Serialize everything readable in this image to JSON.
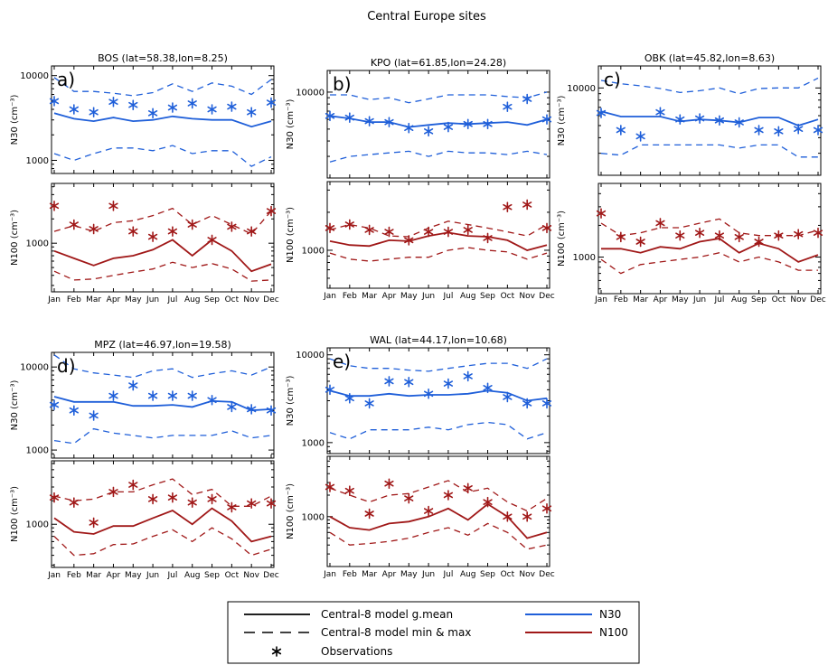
{
  "figure_title": "Central Europe sites",
  "months": [
    "Jan",
    "Feb",
    "Mar",
    "Apr",
    "May",
    "Jun",
    "Jul",
    "Aug",
    "Sep",
    "Oct",
    "Nov",
    "Dec"
  ],
  "colors": {
    "n30": "#1f5fd9",
    "n100": "#a01818",
    "axis": "#000000"
  },
  "legend": {
    "items": [
      {
        "symbol": "solid-line",
        "label": "Central-8 model g.mean"
      },
      {
        "symbol": "dashed-line",
        "label": "Central-8 model min & max"
      },
      {
        "symbol": "asterisk",
        "label": "Observations"
      },
      {
        "symbol": "blue-line",
        "label": "N30"
      },
      {
        "symbol": "red-line",
        "label": "N100"
      }
    ]
  },
  "chart_data": [
    {
      "type": "line",
      "panel_label": "a)",
      "title": "BOS (lat=58.38,lon=8.25)",
      "n30": {
        "ylabel": "N30 (cm⁻³)",
        "yscale": "log",
        "ylim": [
          700,
          13000
        ],
        "ticks": [
          {
            "v": 1000,
            "label": "1000"
          },
          {
            "v": 10000,
            "label": "10000"
          }
        ],
        "mean": [
          3600,
          3100,
          2900,
          3200,
          2900,
          3000,
          3300,
          3100,
          3000,
          3000,
          2500,
          2900
        ],
        "min": [
          1200,
          1000,
          1200,
          1400,
          1400,
          1300,
          1500,
          1200,
          1300,
          1300,
          850,
          1100
        ],
        "max": [
          9500,
          6500,
          6500,
          6200,
          5800,
          6300,
          8000,
          6500,
          8200,
          7500,
          6000,
          9000
        ],
        "obs": [
          5000,
          4000,
          3700,
          4900,
          4500,
          3600,
          4200,
          4700,
          4000,
          4300,
          3700,
          4800
        ]
      },
      "n100": {
        "ylabel": "N100 (cm⁻³)",
        "yscale": "log",
        "ylim": [
          250,
          5500
        ],
        "ticks": [
          {
            "v": 1000,
            "label": "1000"
          }
        ],
        "mean": [
          800,
          650,
          530,
          650,
          700,
          830,
          1100,
          700,
          1100,
          800,
          450,
          550
        ],
        "min": [
          450,
          350,
          360,
          400,
          440,
          480,
          580,
          500,
          560,
          480,
          340,
          350
        ],
        "max": [
          1400,
          1650,
          1400,
          1800,
          1900,
          2200,
          2700,
          1700,
          2200,
          1700,
          1300,
          2500
        ],
        "obs": [
          2900,
          1700,
          1500,
          2900,
          1400,
          1200,
          1400,
          1700,
          1100,
          1600,
          1400,
          2500
        ]
      }
    },
    {
      "type": "line",
      "panel_label": "b)",
      "title": "KPO (lat=61.85,lon=24.28)",
      "n30": {
        "ylabel": "N30 (cm⁻³)",
        "yscale": "log",
        "ylim": [
          2000,
          15000
        ],
        "ticks": [
          {
            "v": 10000,
            "label": "10000"
          }
        ],
        "mean": [
          6400,
          6100,
          5700,
          5700,
          5200,
          5400,
          5600,
          5500,
          5600,
          5700,
          5400,
          6000
        ],
        "min": [
          2700,
          3000,
          3100,
          3200,
          3300,
          3000,
          3300,
          3200,
          3200,
          3100,
          3300,
          3100
        ],
        "max": [
          9500,
          9500,
          8700,
          9000,
          8200,
          8800,
          9500,
          9500,
          9500,
          9200,
          9000,
          10000
        ],
        "obs": [
          6400,
          6200,
          5800,
          5700,
          5100,
          4800,
          5200,
          5500,
          5500,
          7600,
          8800,
          6000
        ]
      },
      "n100": {
        "ylabel": "N100 (cm⁻³)",
        "yscale": "log",
        "ylim": [
          500,
          3500
        ],
        "ticks": [
          {
            "v": 1000,
            "label": "1000"
          }
        ],
        "mean": [
          1180,
          1100,
          1080,
          1200,
          1180,
          1300,
          1380,
          1300,
          1280,
          1200,
          1000,
          1100
        ],
        "min": [
          950,
          850,
          820,
          850,
          880,
          880,
          1000,
          1050,
          1000,
          970,
          850,
          950
        ],
        "max": [
          1450,
          1600,
          1500,
          1300,
          1280,
          1500,
          1700,
          1600,
          1500,
          1400,
          1300,
          1600
        ],
        "obs": [
          1500,
          1600,
          1450,
          1400,
          1200,
          1400,
          1400,
          1450,
          1250,
          2200,
          2300,
          1500
        ]
      }
    },
    {
      "type": "line",
      "panel_label": "c)",
      "title": "OBK (lat=45.82,lon=8.63)",
      "n30": {
        "ylabel": "N30 (cm⁻³)",
        "yscale": "log",
        "ylim": [
          2000,
          15000
        ],
        "ticks": [
          {
            "v": 10000,
            "label": "10000"
          }
        ],
        "mean": [
          6500,
          5900,
          5900,
          5900,
          5400,
          5600,
          5500,
          5300,
          5800,
          5800,
          5000,
          5600
        ],
        "min": [
          3000,
          2900,
          3500,
          3500,
          3500,
          3500,
          3500,
          3300,
          3500,
          3500,
          2800,
          2800
        ],
        "max": [
          11500,
          10800,
          10400,
          9900,
          9200,
          9500,
          10000,
          9000,
          9900,
          10000,
          10000,
          12000
        ],
        "obs": [
          6300,
          4600,
          4100,
          6400,
          5600,
          5700,
          5500,
          5300,
          4600,
          4500,
          4700,
          4600
        ]
      },
      "n100": {
        "ylabel": "N100 (cm⁻³)",
        "yscale": "log",
        "ylim": [
          450,
          5000
        ],
        "ticks": [
          {
            "v": 1000,
            "label": "1000"
          }
        ],
        "mean": [
          1200,
          1200,
          1100,
          1250,
          1200,
          1400,
          1500,
          1100,
          1350,
          1200,
          900,
          1050
        ],
        "min": [
          950,
          700,
          850,
          900,
          950,
          1000,
          1100,
          900,
          1000,
          900,
          750,
          750
        ],
        "max": [
          2100,
          1600,
          1700,
          1900,
          1900,
          2100,
          2300,
          1700,
          1600,
          1600,
          1600,
          1800
        ],
        "obs": [
          2600,
          1550,
          1400,
          2100,
          1600,
          1700,
          1600,
          1550,
          1400,
          1600,
          1650,
          1700
        ]
      }
    },
    {
      "type": "line",
      "panel_label": "d)",
      "title": "MPZ (lat=46.97,lon=19.58)",
      "n30": {
        "ylabel": "N30 (cm⁻³)",
        "yscale": "log",
        "ylim": [
          800,
          15000
        ],
        "ticks": [
          {
            "v": 1000,
            "label": "1000"
          },
          {
            "v": 10000,
            "label": "10000"
          }
        ],
        "mean": [
          4400,
          3800,
          3800,
          3800,
          3400,
          3400,
          3500,
          3300,
          3900,
          3800,
          3000,
          3100
        ],
        "min": [
          1300,
          1200,
          1800,
          1600,
          1500,
          1400,
          1500,
          1500,
          1500,
          1700,
          1400,
          1500
        ],
        "max": [
          14000,
          9500,
          8500,
          8000,
          7500,
          9000,
          9500,
          7500,
          8300,
          9000,
          8000,
          10000
        ],
        "obs": [
          3500,
          3000,
          2600,
          4500,
          6000,
          4500,
          4500,
          4500,
          4000,
          3300,
          3100,
          3000
        ]
      },
      "n100": {
        "ylabel": "N100 (cm⁻³)",
        "yscale": "log",
        "ylim": [
          280,
          6500
        ],
        "ticks": [
          {
            "v": 1000,
            "label": "1000"
          }
        ],
        "mean": [
          1200,
          800,
          750,
          950,
          950,
          1200,
          1500,
          1000,
          1600,
          1100,
          600,
          700
        ],
        "min": [
          700,
          400,
          420,
          550,
          560,
          700,
          850,
          600,
          900,
          650,
          400,
          480
        ],
        "max": [
          2300,
          2000,
          2100,
          2600,
          2600,
          3200,
          3800,
          2400,
          2800,
          1700,
          1700,
          2300
        ],
        "obs": [
          2200,
          1900,
          1050,
          2600,
          3200,
          2100,
          2200,
          1900,
          2100,
          1650,
          1850,
          1850
        ]
      }
    },
    {
      "type": "line",
      "panel_label": "e)",
      "title": "WAL (lat=44.17,lon=10.68)",
      "n30": {
        "ylabel": "N30 (cm⁻³)",
        "yscale": "log",
        "ylim": [
          750,
          12000
        ],
        "ticks": [
          {
            "v": 1000,
            "label": "1000"
          },
          {
            "v": 10000,
            "label": "10000"
          }
        ],
        "mean": [
          3900,
          3400,
          3400,
          3600,
          3400,
          3500,
          3500,
          3600,
          3900,
          3700,
          3000,
          3200
        ],
        "min": [
          1300,
          1100,
          1400,
          1400,
          1400,
          1500,
          1400,
          1600,
          1700,
          1600,
          1100,
          1300
        ],
        "max": [
          9000,
          7500,
          7000,
          7000,
          6700,
          6500,
          7000,
          7500,
          8000,
          8000,
          7000,
          9000
        ],
        "obs": [
          4000,
          3200,
          2800,
          5000,
          4900,
          3600,
          4700,
          5700,
          4200,
          3300,
          2800,
          2800
        ]
      },
      "n100": {
        "ylabel": "N100 (cm⁻³)",
        "yscale": "log",
        "ylim": [
          200,
          7000
        ],
        "ticks": [
          {
            "v": 1000,
            "label": "1000"
          }
        ],
        "mean": [
          1000,
          700,
          650,
          800,
          850,
          1000,
          1300,
          900,
          1500,
          1000,
          500,
          600
        ],
        "min": [
          600,
          400,
          420,
          450,
          500,
          600,
          700,
          550,
          800,
          600,
          350,
          400
        ],
        "max": [
          2500,
          2000,
          1600,
          2000,
          2100,
          2600,
          3200,
          2200,
          2500,
          1600,
          1200,
          1800
        ],
        "obs": [
          2600,
          2300,
          1100,
          2900,
          1800,
          1200,
          2000,
          2500,
          1600,
          1000,
          1000,
          1300
        ]
      }
    }
  ]
}
